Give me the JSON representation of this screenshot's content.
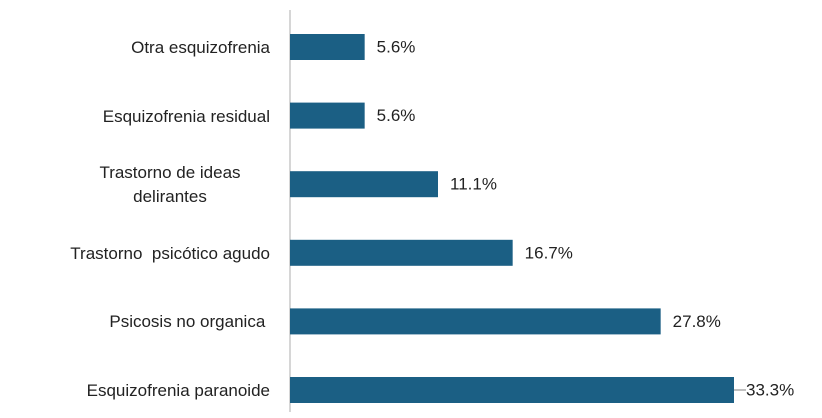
{
  "chart_data": {
    "type": "bar",
    "orientation": "horizontal",
    "categories": [
      "Otra esquizofrenia",
      "Esquizofrenia residual",
      "Trastorno de ideas delirantes",
      "Trastorno  psicótico agudo",
      "Psicosis no organica ",
      "Esquizofrenia paranoide"
    ],
    "values": [
      5.6,
      5.6,
      11.1,
      16.7,
      27.8,
      33.3
    ],
    "value_labels": [
      "5.6%",
      "5.6%",
      "11.1%",
      "16.7%",
      "27.8%",
      "33.3%"
    ],
    "color": "#1b5f84"
  }
}
